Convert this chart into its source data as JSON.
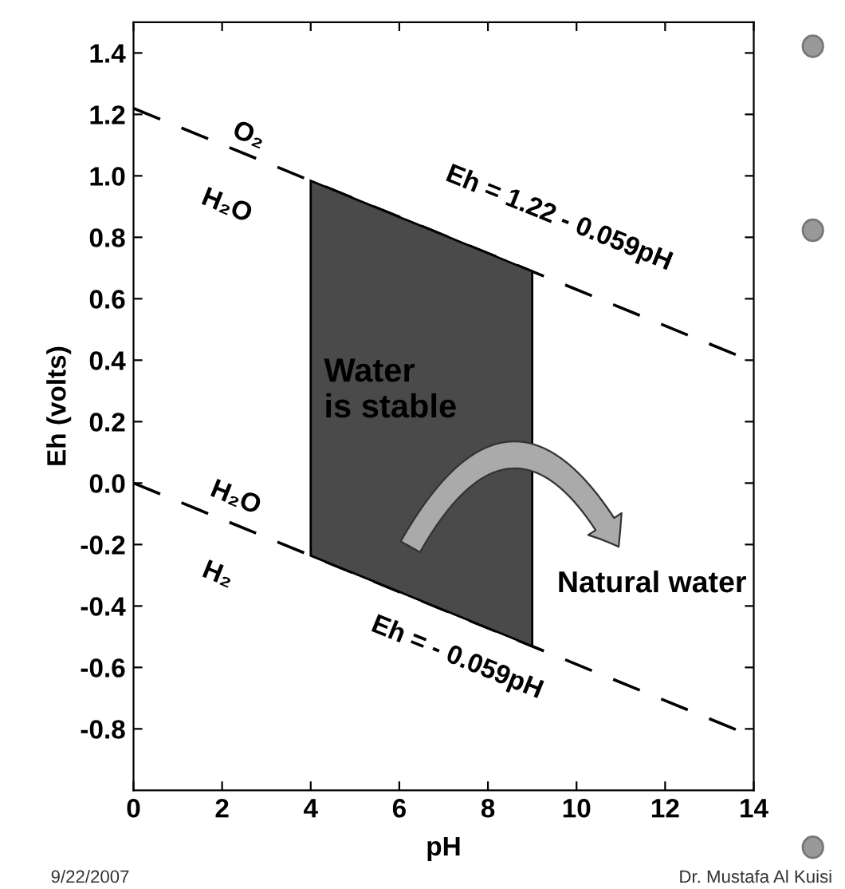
{
  "chart_data": {
    "type": "line",
    "xlabel": "pH",
    "ylabel": "Eh (volts)",
    "xlim": [
      0,
      14
    ],
    "xticks": [
      0,
      2,
      4,
      6,
      8,
      10,
      12,
      14
    ],
    "ylim": [
      -1.0,
      1.5
    ],
    "yticks": [
      {
        "value": -0.8,
        "label": "-0.8"
      },
      {
        "value": -0.6,
        "label": "-0.6"
      },
      {
        "value": -0.4,
        "label": "-0.4"
      },
      {
        "value": -0.2,
        "label": "-0.2"
      },
      {
        "value": 0,
        "label": "0.0"
      },
      {
        "value": 0.2,
        "label": "0.2"
      },
      {
        "value": 0.4,
        "label": "0.4"
      },
      {
        "value": 0.6,
        "label": "0.6"
      },
      {
        "value": 0.8,
        "label": "0.8"
      },
      {
        "value": 1.0,
        "label": "1.0"
      },
      {
        "value": 1.2,
        "label": "1.2"
      },
      {
        "value": 1.4,
        "label": "1.4"
      }
    ],
    "grid": false,
    "legend": false,
    "line_style": "dashed",
    "series": [
      {
        "type": "area",
        "color": "#4a4a4a",
        "x": [
          4,
          9,
          9,
          4
        ],
        "values": [
          0.984,
          0.689,
          -0.531,
          -0.236
        ]
      },
      {
        "type": "line",
        "color": "#000000",
        "x": [
          0,
          14
        ],
        "values": [
          1.22,
          0.394
        ]
      },
      {
        "type": "line",
        "color": "#000000",
        "x": [
          0,
          14
        ],
        "values": [
          0,
          -0.826
        ]
      }
    ],
    "annotations": [
      "O₂",
      "H₂O",
      "Eh = 1.22 - 0.059pH",
      "Water\nis stable",
      "H₂O",
      "H₂",
      "Natural water",
      "Eh = - 0.059pH",
      "9/22/2007",
      "Dr. Mustafa Al Kuisi"
    ]
  }
}
